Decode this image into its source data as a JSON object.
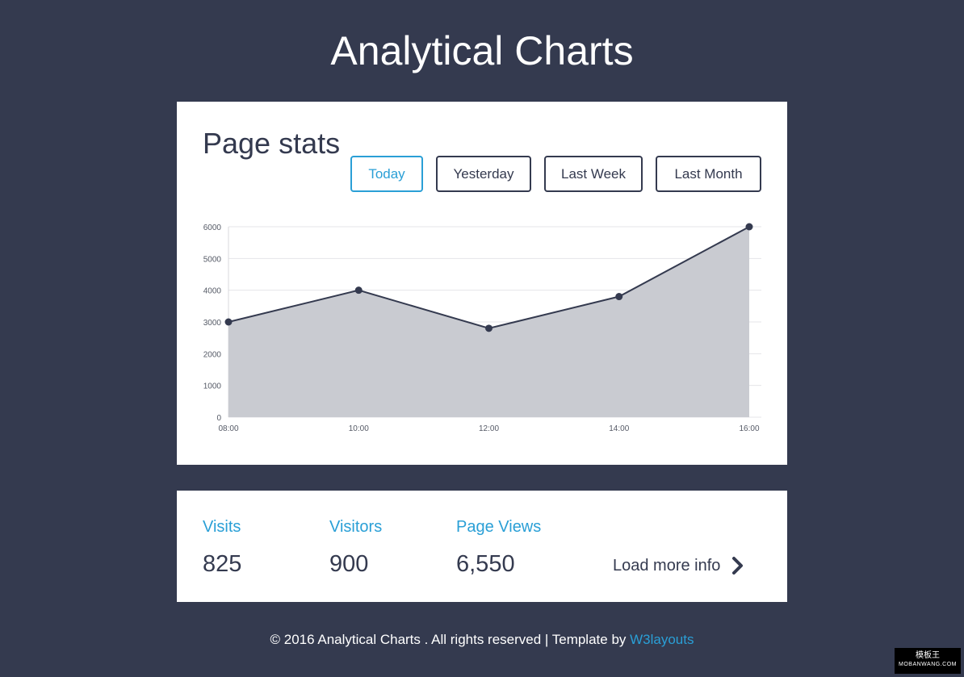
{
  "page": {
    "title": "Analytical Charts"
  },
  "stats_card": {
    "title": "Page stats",
    "buttons": [
      {
        "label": "Today",
        "active": true
      },
      {
        "label": "Yesterday",
        "active": false
      },
      {
        "label": "Last Week",
        "active": false
      },
      {
        "label": "Last Month",
        "active": false
      }
    ]
  },
  "chart_data": {
    "type": "area",
    "title": "",
    "xlabel": "",
    "ylabel": "",
    "categories": [
      "08:00",
      "10:00",
      "12:00",
      "14:00",
      "16:00"
    ],
    "series": [
      {
        "values": [
          3000,
          4000,
          2800,
          3800,
          6000
        ]
      }
    ],
    "yticks": [
      "0",
      "1000",
      "2000",
      "3000",
      "4000",
      "5000",
      "6000"
    ],
    "ylim": [
      0,
      6000
    ],
    "grid": true,
    "legend": "none",
    "colors": {
      "line": "#343a4f",
      "fill": "#c9cbd1",
      "point": "#343a4f"
    }
  },
  "summary": {
    "metrics": [
      {
        "label": "Visits",
        "value": "825"
      },
      {
        "label": "Visitors",
        "value": "900"
      },
      {
        "label": "Page Views",
        "value": "6,550"
      }
    ],
    "load_more": "Load more info",
    "load_more_icon": "chevron-right-icon"
  },
  "footer": {
    "text": "© 2016 Analytical Charts . All rights reserved | Template by ",
    "link_text": "W3layouts"
  },
  "watermark": {
    "line1": "模板王",
    "line2": "MOBANWANG.COM"
  },
  "colors": {
    "background": "#343a4f",
    "accent": "#2a9fd6",
    "card": "#ffffff"
  }
}
